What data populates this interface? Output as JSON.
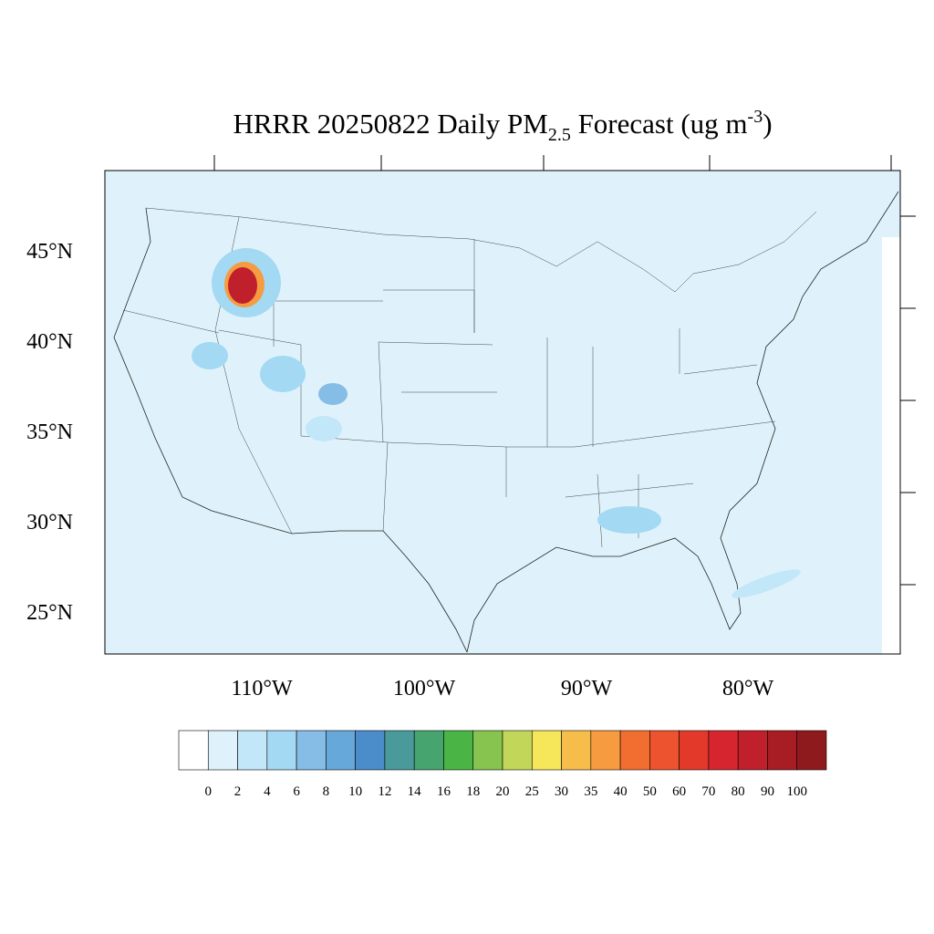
{
  "title": {
    "main": "HRRR 20250822 Daily PM",
    "sub": "2.5",
    "rest": " Forecast (ug m",
    "sup": "-3",
    "end": ")"
  },
  "map": {
    "lat_labels": [
      "45°N",
      "40°N",
      "35°N",
      "30°N",
      "25°N"
    ],
    "lon_labels": [
      "110°W",
      "100°W",
      "90°W",
      "80°W"
    ]
  },
  "colorbar": {
    "colors": [
      "#ffffff",
      "#dff2fb",
      "#c2e7f8",
      "#a3d9f3",
      "#85bde6",
      "#67a8da",
      "#4b8ccb",
      "#4a9a9c",
      "#46a46f",
      "#4ab545",
      "#86c34f",
      "#c2d75a",
      "#f6e65a",
      "#f7bd4b",
      "#f69b3f",
      "#f26e30",
      "#ec532e",
      "#e3392b",
      "#d72530",
      "#c0202b",
      "#a81c24",
      "#8e1a1e"
    ],
    "levels": [
      0,
      2,
      4,
      6,
      8,
      10,
      12,
      14,
      16,
      18,
      20,
      25,
      30,
      35,
      40,
      50,
      60,
      70,
      80,
      90,
      100
    ]
  }
}
